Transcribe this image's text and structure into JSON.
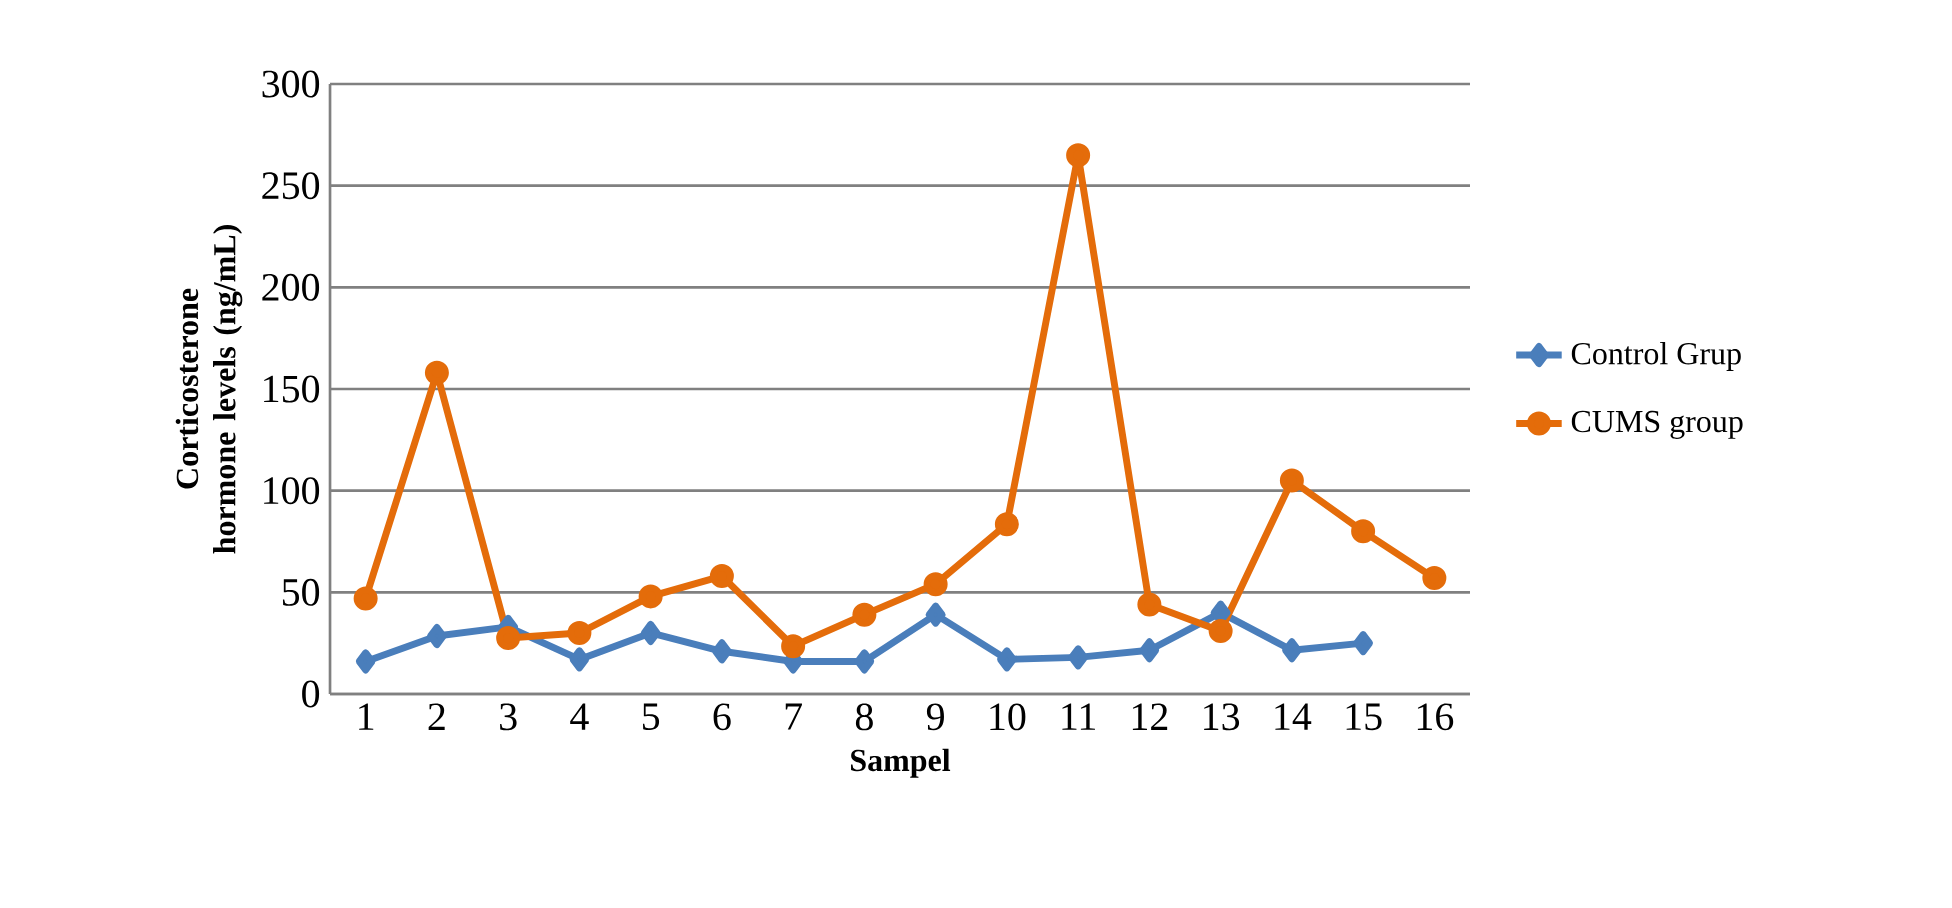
{
  "chart_data": {
    "type": "line",
    "xlabel": "Sampel",
    "ylabel": "Corticosterone hormone levels (ng/mL)",
    "categories": [
      "1",
      "2",
      "3",
      "4",
      "5",
      "6",
      "7",
      "8",
      "9",
      "10",
      "11",
      "12",
      "13",
      "14",
      "15",
      "16"
    ],
    "series": [
      {
        "name": "Control Grup",
        "color": "#4a7ebb",
        "marker": "diamond",
        "values": [
          16,
          28.5,
          33,
          17,
          30,
          21,
          16,
          16,
          39,
          17,
          18,
          21.5,
          40,
          21.5,
          25,
          null
        ]
      },
      {
        "name": "CUMS group",
        "color": "#e46c0a",
        "marker": "circle",
        "values": [
          47,
          158,
          27.5,
          30,
          48,
          58,
          23.5,
          39,
          54,
          83.5,
          265,
          44,
          31,
          105,
          80,
          57
        ]
      }
    ],
    "ylim": [
      0,
      300
    ],
    "yticks": [
      0,
      50,
      100,
      150,
      200,
      250,
      300
    ],
    "grid": "y",
    "legend": "right"
  }
}
